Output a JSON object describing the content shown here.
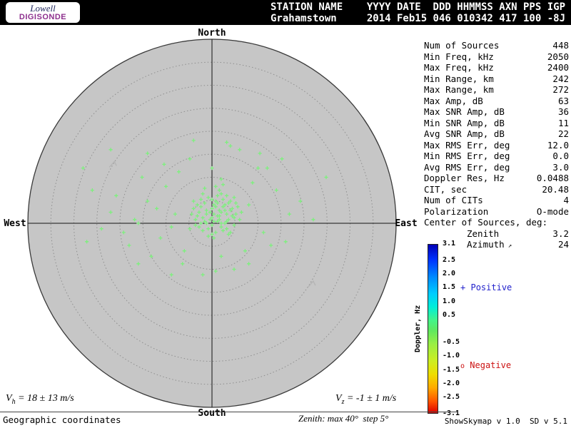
{
  "header": {
    "logo": {
      "line1": "Lowell",
      "line2": "DIGISONDE"
    },
    "line1": "STATION NAME    YYYY DATE  DDD HHMMSS AXN PPS IGP",
    "line2": "Grahamstown     2014 Feb15 046 010342 417 100 -8J"
  },
  "compass": {
    "north": "North",
    "south": "South",
    "east": "East",
    "west": "West"
  },
  "stats": {
    "rows": [
      {
        "label": "Num of Sources",
        "value": "448"
      },
      {
        "label": "Min Freq, kHz",
        "value": "2050"
      },
      {
        "label": "Max Freq, kHz",
        "value": "2400"
      },
      {
        "label": "Min Range, km",
        "value": "242"
      },
      {
        "label": "Max Range, km",
        "value": "272"
      },
      {
        "label": "Max Amp, dB",
        "value": "63"
      },
      {
        "label": "Max SNR Amp, dB",
        "value": "36"
      },
      {
        "label": "Min SNR Amp, dB",
        "value": "11"
      },
      {
        "label": "Avg SNR Amp, dB",
        "value": "22"
      },
      {
        "label": "Max RMS Err, deg",
        "value": "12.0"
      },
      {
        "label": "Min RMS Err, deg",
        "value": "0.0"
      },
      {
        "label": "Avg RMS Err, deg",
        "value": "3.0"
      },
      {
        "label": "Doppler Res, Hz",
        "value": "0.0488"
      },
      {
        "label": "CIT, sec",
        "value": "20.48"
      },
      {
        "label": "Num of CITs",
        "value": "4"
      },
      {
        "label": "Polarization",
        "value": "O-mode"
      },
      {
        "label": "Center of Sources, deg:",
        "value": ""
      },
      {
        "label": "Zenith",
        "value": "3.2",
        "indent": true
      },
      {
        "label": "Azimuth",
        "value": "24",
        "indent": true,
        "arrow": true
      }
    ]
  },
  "colorbar": {
    "axis_label": "Doppler, Hz",
    "max": 3.1,
    "min": -3.1,
    "ticks": [
      "3.1",
      "2.5",
      "2.0",
      "1.5",
      "1.0",
      "0.5",
      "-0.5",
      "-1.0",
      "-1.5",
      "-2.0",
      "-2.5",
      "-3.1"
    ],
    "positive_label": "Positive",
    "negative_label": "Negative",
    "positive_color": "#2222cc",
    "negative_color": "#cc1111"
  },
  "footer": {
    "vh": {
      "symbol": "V",
      "sub": "h",
      "text": "= 18 ± 13 m/s"
    },
    "vz": {
      "symbol": "V",
      "sub": "z",
      "text": "= -1 ± 1 m/s"
    },
    "coords": "Geographic coordinates",
    "zenith_note": "Zenith: max 40°  step 5°",
    "version": "ShowSkymap v 1.0  SD v 5.1"
  },
  "chart_data": {
    "type": "scatter",
    "projection": "polar-skymap",
    "zenith_max_deg": 40,
    "zenith_step_deg": 5,
    "marker": "+",
    "point_color": "#7df07d",
    "disk_color": "#c6c6c6",
    "points": [
      [
        0.01,
        -0.05
      ],
      [
        0.04,
        -0.02
      ],
      [
        -0.03,
        -0.07
      ],
      [
        0.06,
        -0.09
      ],
      [
        0.0,
        0.01
      ],
      [
        -0.05,
        -0.03
      ],
      [
        0.08,
        -0.05
      ],
      [
        0.02,
        -0.12
      ],
      [
        -0.02,
        0.03
      ],
      [
        0.05,
        0.02
      ],
      [
        0.1,
        -0.07
      ],
      [
        -0.07,
        -0.06
      ],
      [
        0.03,
        -0.15
      ],
      [
        0.07,
        0.0
      ],
      [
        -0.04,
        -0.11
      ],
      [
        0.12,
        -0.03
      ],
      [
        0.0,
        -0.08
      ],
      [
        -0.09,
        0.01
      ],
      [
        0.05,
        -0.06
      ],
      [
        0.09,
        -0.11
      ],
      [
        -0.01,
        -0.02
      ],
      [
        0.02,
        0.05
      ],
      [
        -0.06,
        -0.09
      ],
      [
        0.11,
        -0.08
      ],
      [
        0.04,
        -0.04
      ],
      [
        -0.03,
        0.0
      ],
      [
        0.06,
        -0.13
      ],
      [
        0.13,
        -0.05
      ],
      [
        -0.08,
        -0.04
      ],
      [
        0.01,
        -0.1
      ],
      [
        0.08,
        0.03
      ],
      [
        -0.05,
        0.04
      ],
      [
        0.03,
        -0.01
      ],
      [
        0.1,
        -0.12
      ],
      [
        -0.02,
        -0.14
      ],
      [
        0.07,
        -0.07
      ],
      [
        0.0,
        -0.03
      ],
      [
        -0.1,
        -0.08
      ],
      [
        0.05,
        -0.16
      ],
      [
        0.12,
        0.01
      ],
      [
        -0.04,
        -0.01
      ],
      [
        0.02,
        -0.09
      ],
      [
        0.09,
        -0.02
      ],
      [
        -0.07,
        0.02
      ],
      [
        0.04,
        -0.18
      ],
      [
        0.14,
        -0.09
      ],
      [
        -0.01,
        -0.06
      ],
      [
        0.06,
        0.04
      ],
      [
        -0.06,
        -0.13
      ],
      [
        0.11,
        -0.04
      ],
      [
        0.03,
        -0.11
      ],
      [
        -0.09,
        -0.02
      ],
      [
        0.08,
        -0.15
      ],
      [
        0.0,
        0.06
      ],
      [
        -0.03,
        -0.05
      ],
      [
        0.13,
        -0.11
      ],
      [
        0.05,
        0.0
      ],
      [
        -0.11,
        -0.05
      ],
      [
        0.02,
        -0.2
      ],
      [
        0.07,
        -0.1
      ],
      [
        -0.05,
        -0.16
      ],
      [
        0.1,
        0.05
      ],
      [
        0.01,
        -0.01
      ],
      [
        -0.08,
        -0.1
      ],
      [
        0.15,
        -0.02
      ],
      [
        0.04,
        -0.07
      ],
      [
        -0.02,
        0.07
      ],
      [
        0.06,
        -0.21
      ],
      [
        0.12,
        -0.14
      ],
      [
        -0.12,
        0.03
      ],
      [
        0.0,
        -0.13
      ],
      [
        0.09,
        0.06
      ],
      [
        -0.06,
        0.0
      ],
      [
        0.03,
        -0.04
      ],
      [
        0.16,
        -0.06
      ],
      [
        -0.04,
        -0.19
      ],
      [
        0.08,
        -0.01
      ],
      [
        0.01,
        0.08
      ],
      [
        -0.1,
        -0.12
      ],
      [
        0.05,
        -0.24
      ],
      [
        -0.2,
        -0.05
      ],
      [
        -0.28,
        0.08
      ],
      [
        -0.35,
        -0.12
      ],
      [
        -0.15,
        0.15
      ],
      [
        -0.42,
        -0.02
      ],
      [
        -0.25,
        -0.2
      ],
      [
        -0.48,
        0.05
      ],
      [
        -0.18,
        -0.28
      ],
      [
        -0.33,
        0.18
      ],
      [
        -0.52,
        -0.15
      ],
      [
        -0.22,
        0.02
      ],
      [
        -0.38,
        -0.25
      ],
      [
        -0.12,
        -0.35
      ],
      [
        -0.45,
        0.12
      ],
      [
        -0.3,
        -0.08
      ],
      [
        -0.55,
        -0.06
      ],
      [
        -0.16,
        0.22
      ],
      [
        -0.4,
        0.0
      ],
      [
        -0.26,
        -0.32
      ],
      [
        -0.6,
        0.03
      ],
      [
        0.2,
        -0.1
      ],
      [
        0.28,
        0.05
      ],
      [
        0.35,
        -0.18
      ],
      [
        0.18,
        0.15
      ],
      [
        0.25,
        -0.3
      ],
      [
        0.42,
        -0.05
      ],
      [
        0.15,
        -0.4
      ],
      [
        0.32,
        0.12
      ],
      [
        0.22,
        -0.22
      ],
      [
        0.48,
        -0.12
      ],
      [
        0.12,
        0.25
      ],
      [
        0.38,
        -0.35
      ],
      [
        0.1,
        -0.42
      ],
      [
        0.26,
        -0.38
      ],
      [
        0.05,
        0.18
      ],
      [
        -0.05,
        0.28
      ],
      [
        0.0,
        -0.3
      ],
      [
        -0.1,
        -0.45
      ],
      [
        0.08,
        -0.44
      ],
      [
        0.55,
        -0.02
      ],
      [
        -0.7,
        -0.3
      ],
      [
        -0.68,
        0.1
      ],
      [
        -0.55,
        -0.4
      ],
      [
        0.62,
        -0.25
      ],
      [
        0.3,
        -0.3
      ],
      [
        -0.22,
        0.28
      ],
      [
        -0.35,
        -0.38
      ],
      [
        0.2,
        0.22
      ],
      [
        -0.65,
        -0.18
      ],
      [
        0.4,
        0.1
      ],
      [
        -0.4,
        0.22
      ],
      [
        0.02,
        0.26
      ]
    ],
    "gray_marks": [
      {
        "x": -0.53,
        "y": -0.32
      },
      {
        "x": 0.55,
        "y": 0.33
      }
    ]
  }
}
